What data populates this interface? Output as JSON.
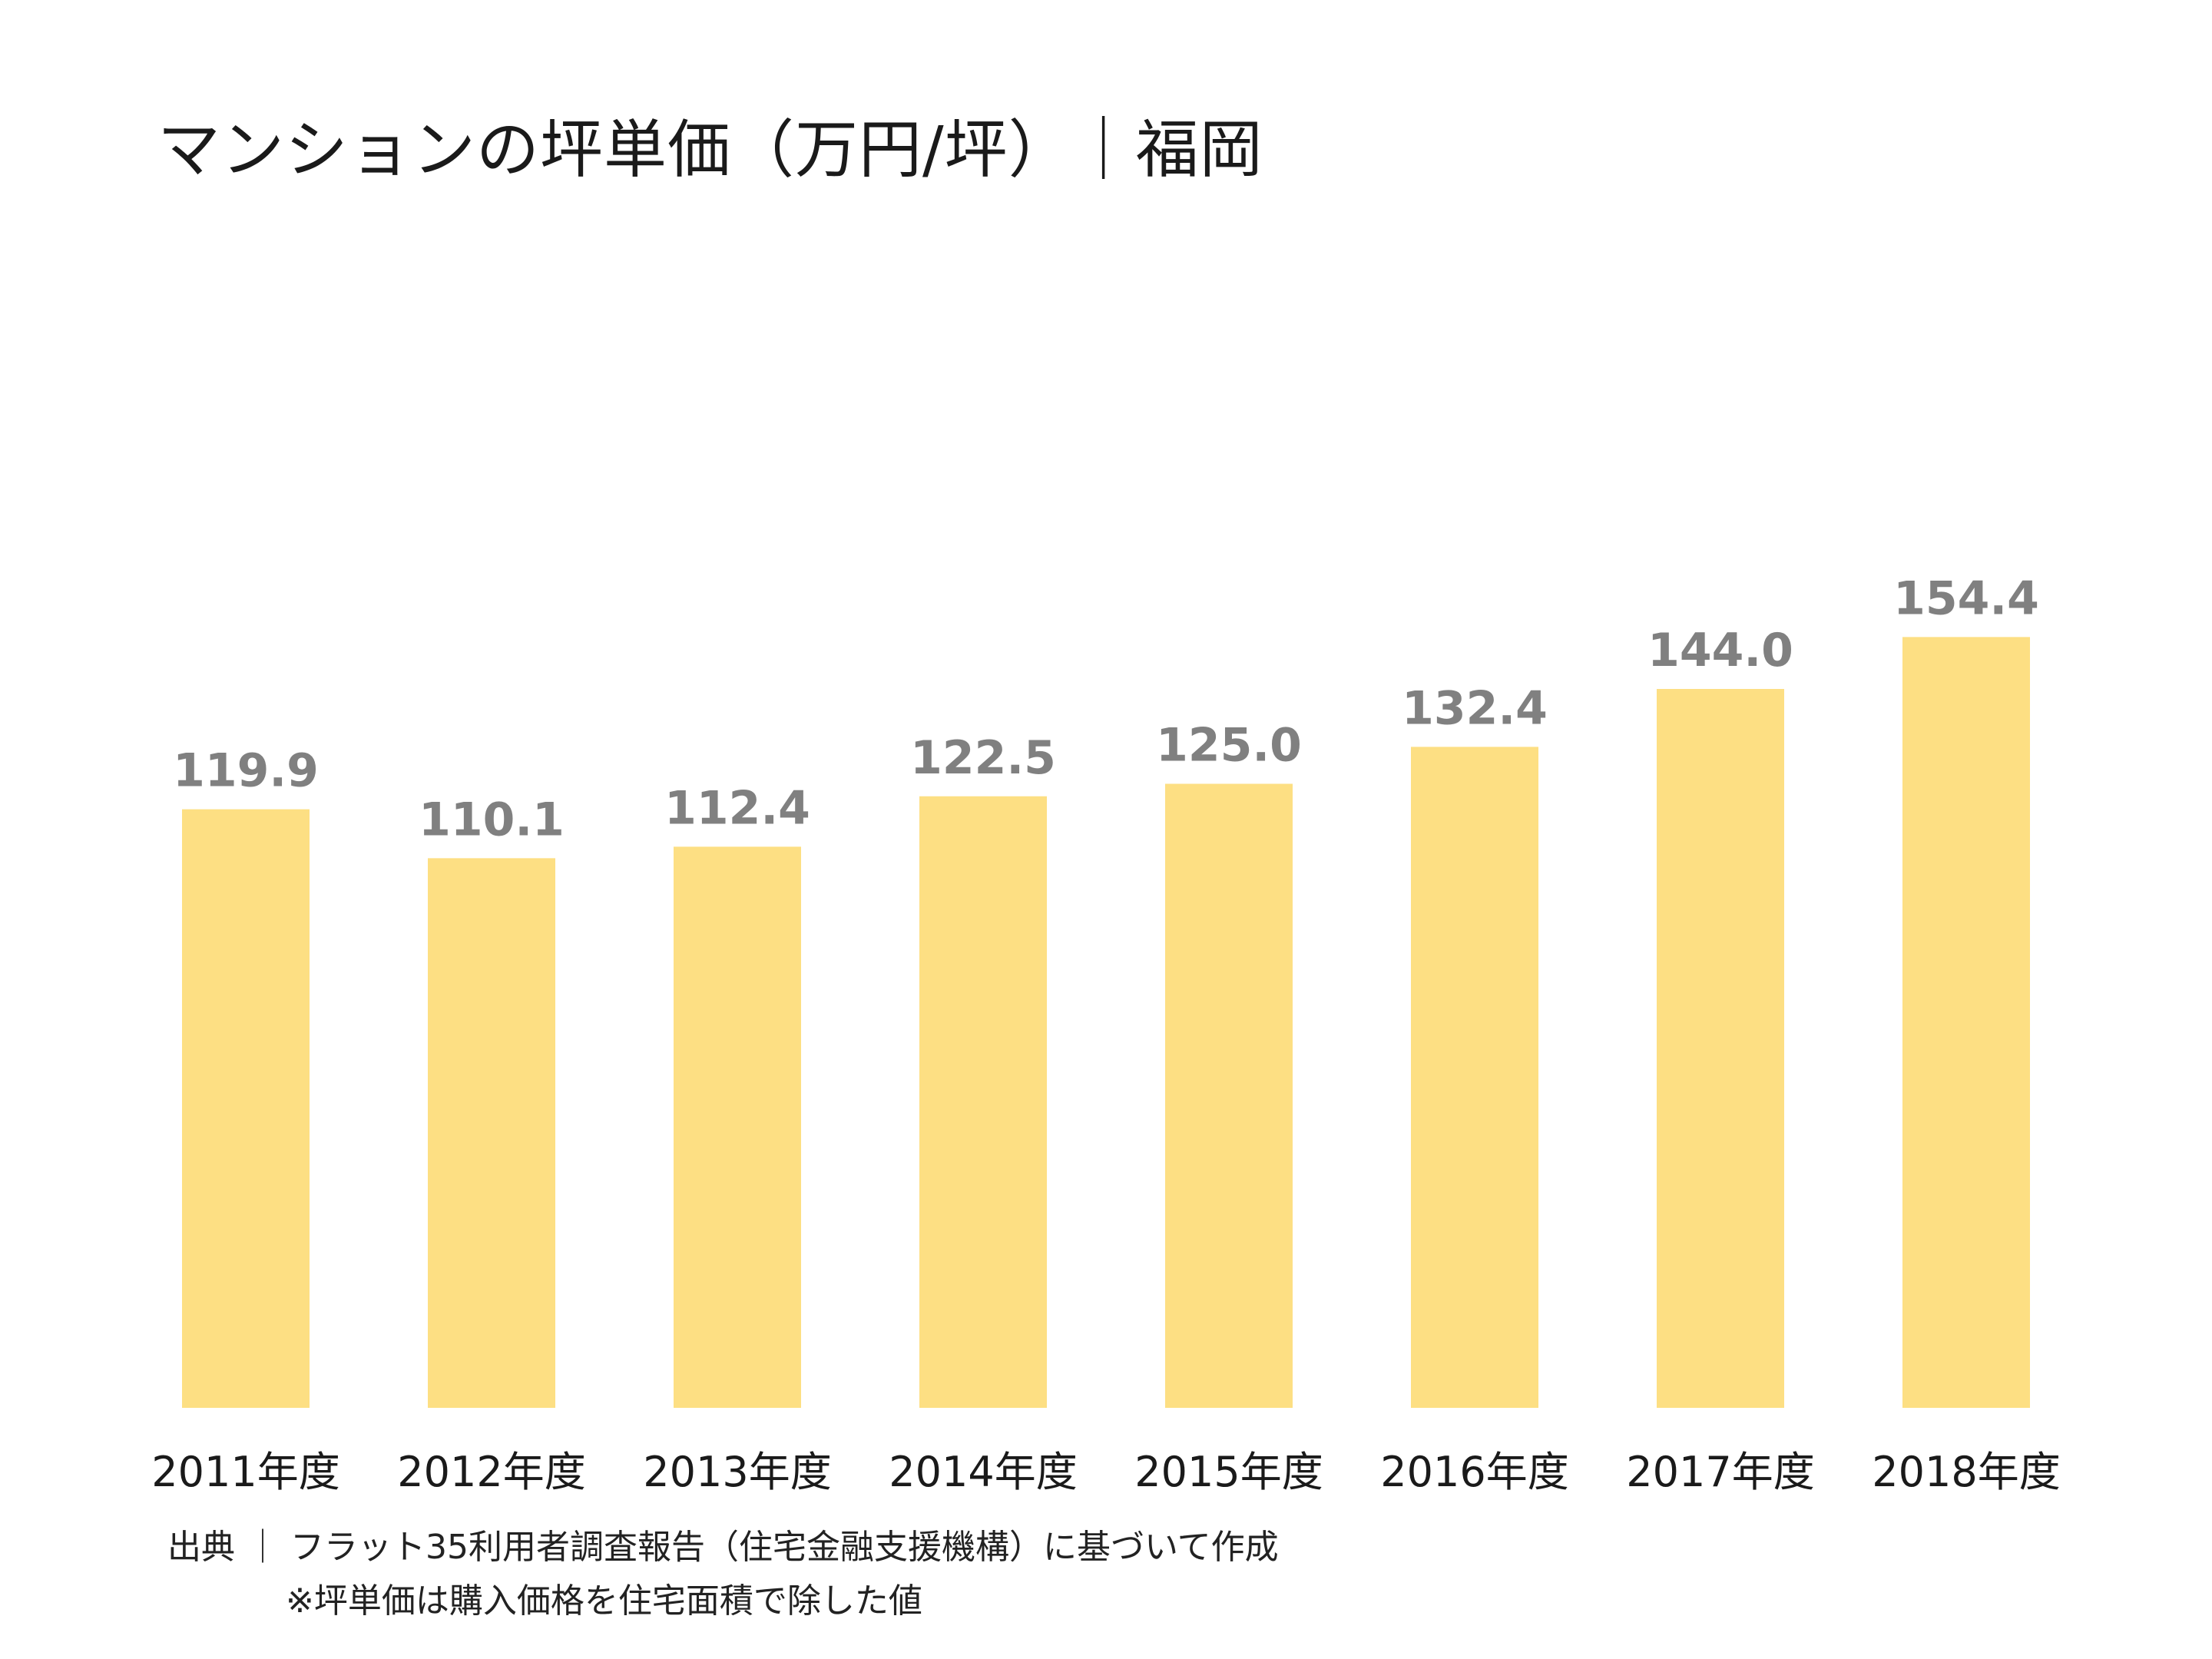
{
  "title": "マンションの坪単価（万円/坪）｜福岡",
  "source": "出典 ｜ フラット35利用者調査報告（住宅金融支援機構）に基づいて作成",
  "note": "※坪単価は購入価格を住宅面積で除した値",
  "colors": {
    "bar": "#fddf83",
    "value_label": "#808080",
    "category_label": "#1a1a1a"
  },
  "chart_data": {
    "type": "bar",
    "title": "マンションの坪単価（万円/坪）｜福岡",
    "categories": [
      "2011年度",
      "2012年度",
      "2013年度",
      "2014年度",
      "2015年度",
      "2016年度",
      "2017年度",
      "2018年度"
    ],
    "values": [
      119.9,
      110.1,
      112.4,
      122.5,
      125.0,
      132.4,
      144.0,
      154.4
    ],
    "value_labels": [
      "119.9",
      "110.1",
      "112.4",
      "122.5",
      "125.0",
      "132.4",
      "144.0",
      "154.4"
    ],
    "ylim": [
      0,
      282
    ],
    "grid": false,
    "legend": "none"
  }
}
